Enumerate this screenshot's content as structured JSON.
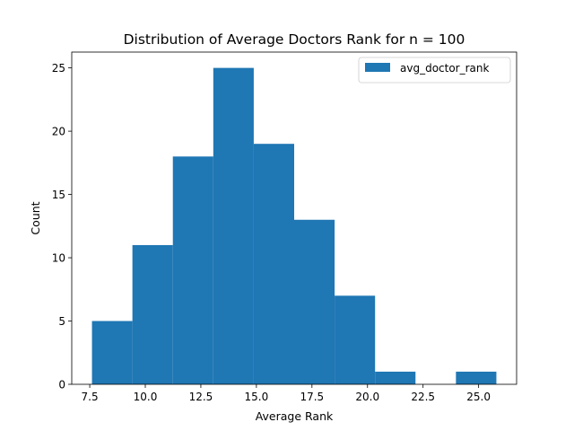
{
  "chart_data": {
    "type": "bar",
    "title": "Distribution of Average Doctors Rank for n = 100",
    "xlabel": "Average Rank",
    "ylabel": "Count",
    "bin_edges": [
      7.6,
      9.42,
      11.24,
      13.06,
      14.88,
      16.7,
      18.52,
      20.34,
      22.16,
      23.98,
      25.8
    ],
    "counts": [
      5,
      11,
      18,
      25,
      19,
      13,
      7,
      1,
      0,
      1
    ],
    "series": [
      {
        "name": "avg_doctor_rank",
        "color": "#1f77b4"
      }
    ],
    "xlim": [
      6.69,
      26.71
    ],
    "ylim": [
      0,
      26.25
    ],
    "xticks": [
      7.5,
      10.0,
      12.5,
      15.0,
      17.5,
      20.0,
      22.5,
      25.0
    ],
    "xtick_labels": [
      "7.5",
      "10.0",
      "12.5",
      "15.0",
      "17.5",
      "20.0",
      "22.5",
      "25.0"
    ],
    "yticks": [
      0,
      5,
      10,
      15,
      20,
      25
    ],
    "ytick_labels": [
      "0",
      "5",
      "10",
      "15",
      "20",
      "25"
    ],
    "legend_position": "top-right",
    "grid": false
  }
}
